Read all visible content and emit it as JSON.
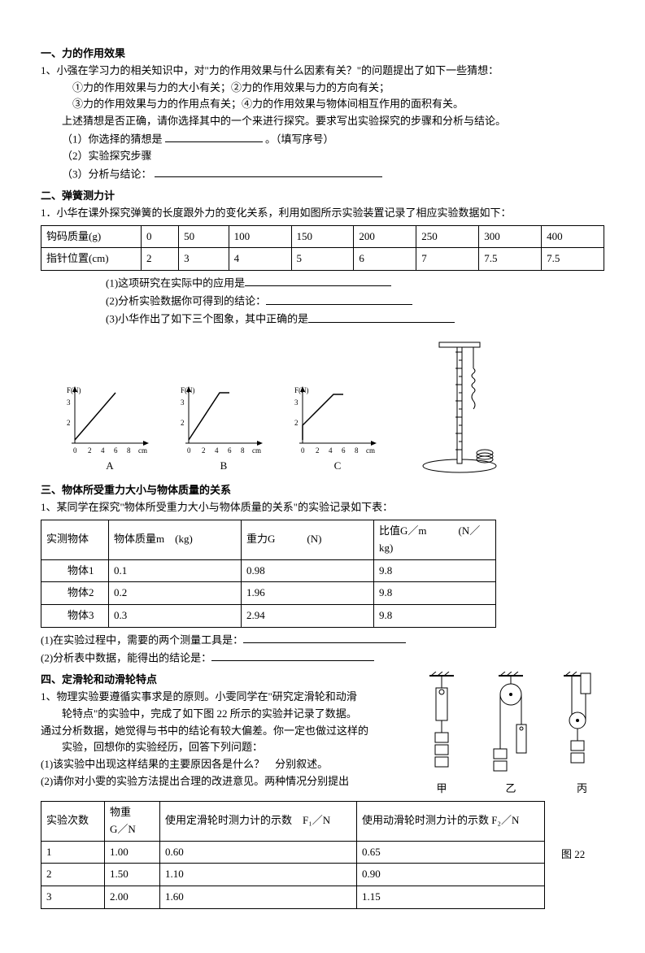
{
  "s1": {
    "heading": "一、力的作用效果",
    "q1": "1、小强在学习力的相关知识中，对\"力的作用效果与什么因素有关？\"的问题提出了如下一些猜想：",
    "g12": "①力的作用效果与力的大小有关；②力的作用效果与力的方向有关；",
    "g34": "③力的作用效果与力的作用点有关；④力的作用效果与物体间相互作用的面积有关。",
    "instr": "上述猜想是否正确，请你选择其中的一个来进行探究。要求写出实验探究的步骤和分析与结论。",
    "p1a": "（1）你选择的猜想是",
    "p1b": "。（填写序号）",
    "p2": "（2）实验探究步骤",
    "p3": "（3）分析与结论：",
    "blank_style": {
      "short_w": 120,
      "long_w": 280,
      "color": "#000000"
    }
  },
  "s2": {
    "heading": "二、弹簧测力计",
    "intro": "1．小华在课外探究弹簧的长度跟外力的变化关系，利用如图所示实验装置记录了相应实验数据如下：",
    "table": {
      "row1_label": "钩码质量(g)",
      "row2_label": "指针位置(cm)",
      "mass": [
        "0",
        "50",
        "100",
        "150",
        "200",
        "250",
        "300",
        "400"
      ],
      "pos": [
        "2",
        "3",
        "4",
        "5",
        "6",
        "7",
        "7.5",
        "7.5"
      ],
      "border_color": "#000000"
    },
    "p1": "(1)这项研究在实际中的应用是",
    "p2": "(2)分析实验数据你可得到的结论：",
    "p3": "(3)小华作出了如下三个图象，其中正确的是",
    "charts": {
      "ylab": "F(N)",
      "xlab": "cm",
      "y_ticks": [
        "2",
        "3"
      ],
      "x_ticks": [
        "0",
        "2",
        "4",
        "6",
        "8"
      ],
      "labels": [
        "A",
        "B",
        "C"
      ],
      "line_color": "#000000",
      "axis_color": "#000000",
      "fontsize": 9,
      "A": {
        "pts": [
          [
            12,
            68
          ],
          [
            62,
            10
          ],
          [
            62,
            10
          ]
        ]
      },
      "B": {
        "pts": [
          [
            12,
            68
          ],
          [
            50,
            10
          ],
          [
            62,
            10
          ]
        ]
      },
      "C": {
        "pts": [
          [
            12,
            68
          ],
          [
            12,
            50
          ],
          [
            50,
            12
          ],
          [
            62,
            12
          ]
        ]
      }
    }
  },
  "s3": {
    "heading": "三、物体所受重力大小与物体质量的关系",
    "intro": "1、某同学在探究\"物体所受重力大小与物体质量的关系\"的实验记录如下表：",
    "table": {
      "h1": "实测物体",
      "h2": "物体质量m　(kg)",
      "h3": "重力G　　　(N)",
      "h4": "比值G／m　　　(N／kg)",
      "rows": [
        {
          "obj": "　　物体1",
          "m": "0.1",
          "g": "0.98",
          "r": "9.8"
        },
        {
          "obj": "　　物体2",
          "m": "0.2",
          "g": "1.96",
          "r": "9.8"
        },
        {
          "obj": "　　物体3",
          "m": "0.3",
          "g": "2.94",
          "r": "9.8"
        }
      ]
    },
    "p1": "(1)在实验过程中，需要的两个测量工具是：",
    "p2": "(2)分析表中数据，能得出的结论是："
  },
  "s4": {
    "heading": "四、定滑轮和动滑轮特点",
    "l1": "1、物理实验要遵循实事求是的原则。小雯同学在\"研究定滑轮和动滑",
    "l1b": "轮特点\"的实验中，完成了如下图 22 所示的实验并记录了数据。",
    "l2": "通过分析数据，她觉得与书中的结论有较大偏差。你一定也做过这样的",
    "l2b": "实验，回想你的实验经历，回答下列问题：",
    "p1": "(1)该实验中出现这样结果的主要原因各是什么？　分别叙述。",
    "p2": "(2)请你对小雯的实验方法提出合理的改进意见。两种情况分别提出",
    "pulley_labels": {
      "a": "甲",
      "b": "乙",
      "c": "丙"
    },
    "fig_caption": "图 22",
    "table": {
      "h1": "实验次数",
      "h2": "物重\nG／N",
      "h3": "使用定滑轮时测力计的示数　F₁／N",
      "h4": "使用动滑轮时测力计的示数 F₂／N",
      "rows": [
        {
          "n": "1",
          "g": "1.00",
          "f1": "0.60",
          "f2": "0.65"
        },
        {
          "n": "2",
          "g": "1.50",
          "f1": "1.10",
          "f2": "0.90"
        },
        {
          "n": "3",
          "g": "2.00",
          "f1": "1.60",
          "f2": "1.15"
        }
      ]
    }
  }
}
